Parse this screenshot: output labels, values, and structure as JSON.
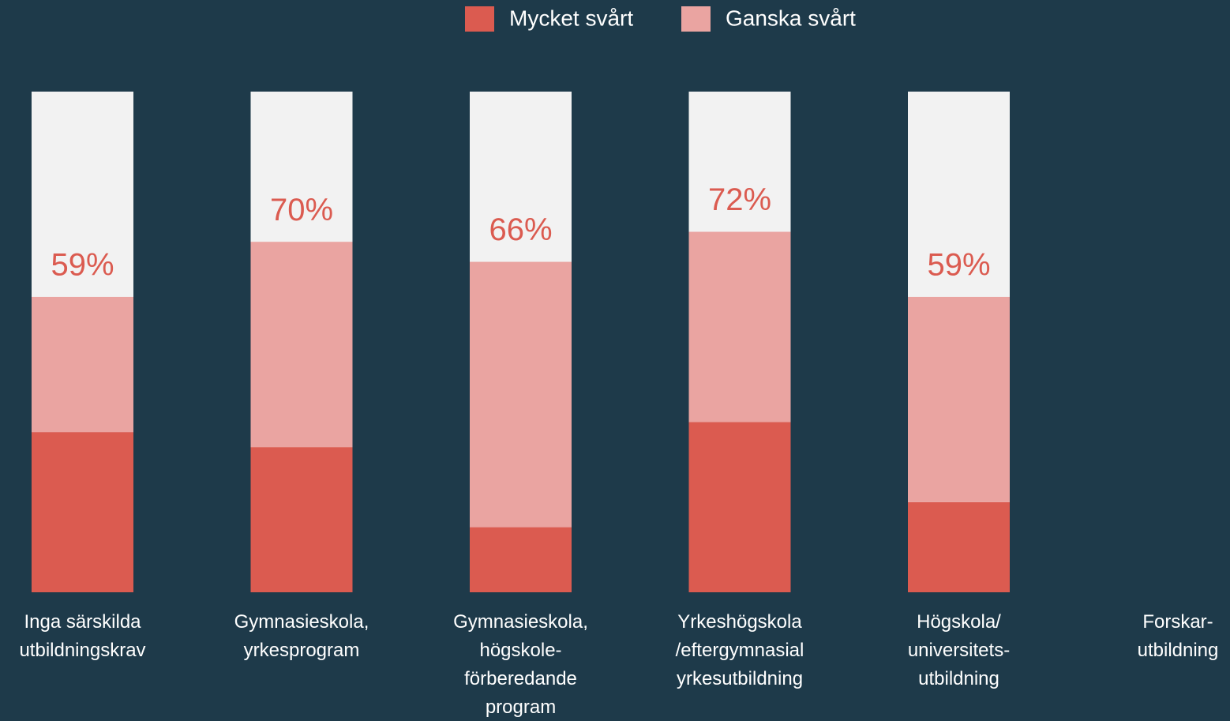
{
  "chart_data": {
    "type": "stacked_bar",
    "categories": [
      "Inga särskilda\nutbildningskrav",
      "Gymnasieskola,\nyrkesprogram",
      "Gymnasieskola,\nhögskole-\nförberedande\nprogram",
      "Yrkeshögskola\n/eftergymnasial\nyrkesutbildning",
      "Högskola/\nuniversitets-\nutbildning",
      "Forskar-\nutbildning"
    ],
    "series": [
      {
        "name": "Mycket svårt",
        "color": "#db5b50",
        "values": [
          32,
          29,
          13,
          34,
          18,
          null
        ]
      },
      {
        "name": "Ganska svårt",
        "color": "#eaa4a1",
        "values": [
          27,
          41,
          53,
          38,
          41,
          null
        ]
      }
    ],
    "totals": [
      59,
      70,
      66,
      72,
      59,
      null
    ],
    "total_labels": [
      "59%",
      "70%",
      "66%",
      "72%",
      "59%",
      null
    ],
    "ylim": [
      0,
      100
    ],
    "background_color": "#f2f2f2",
    "legend": "top"
  }
}
